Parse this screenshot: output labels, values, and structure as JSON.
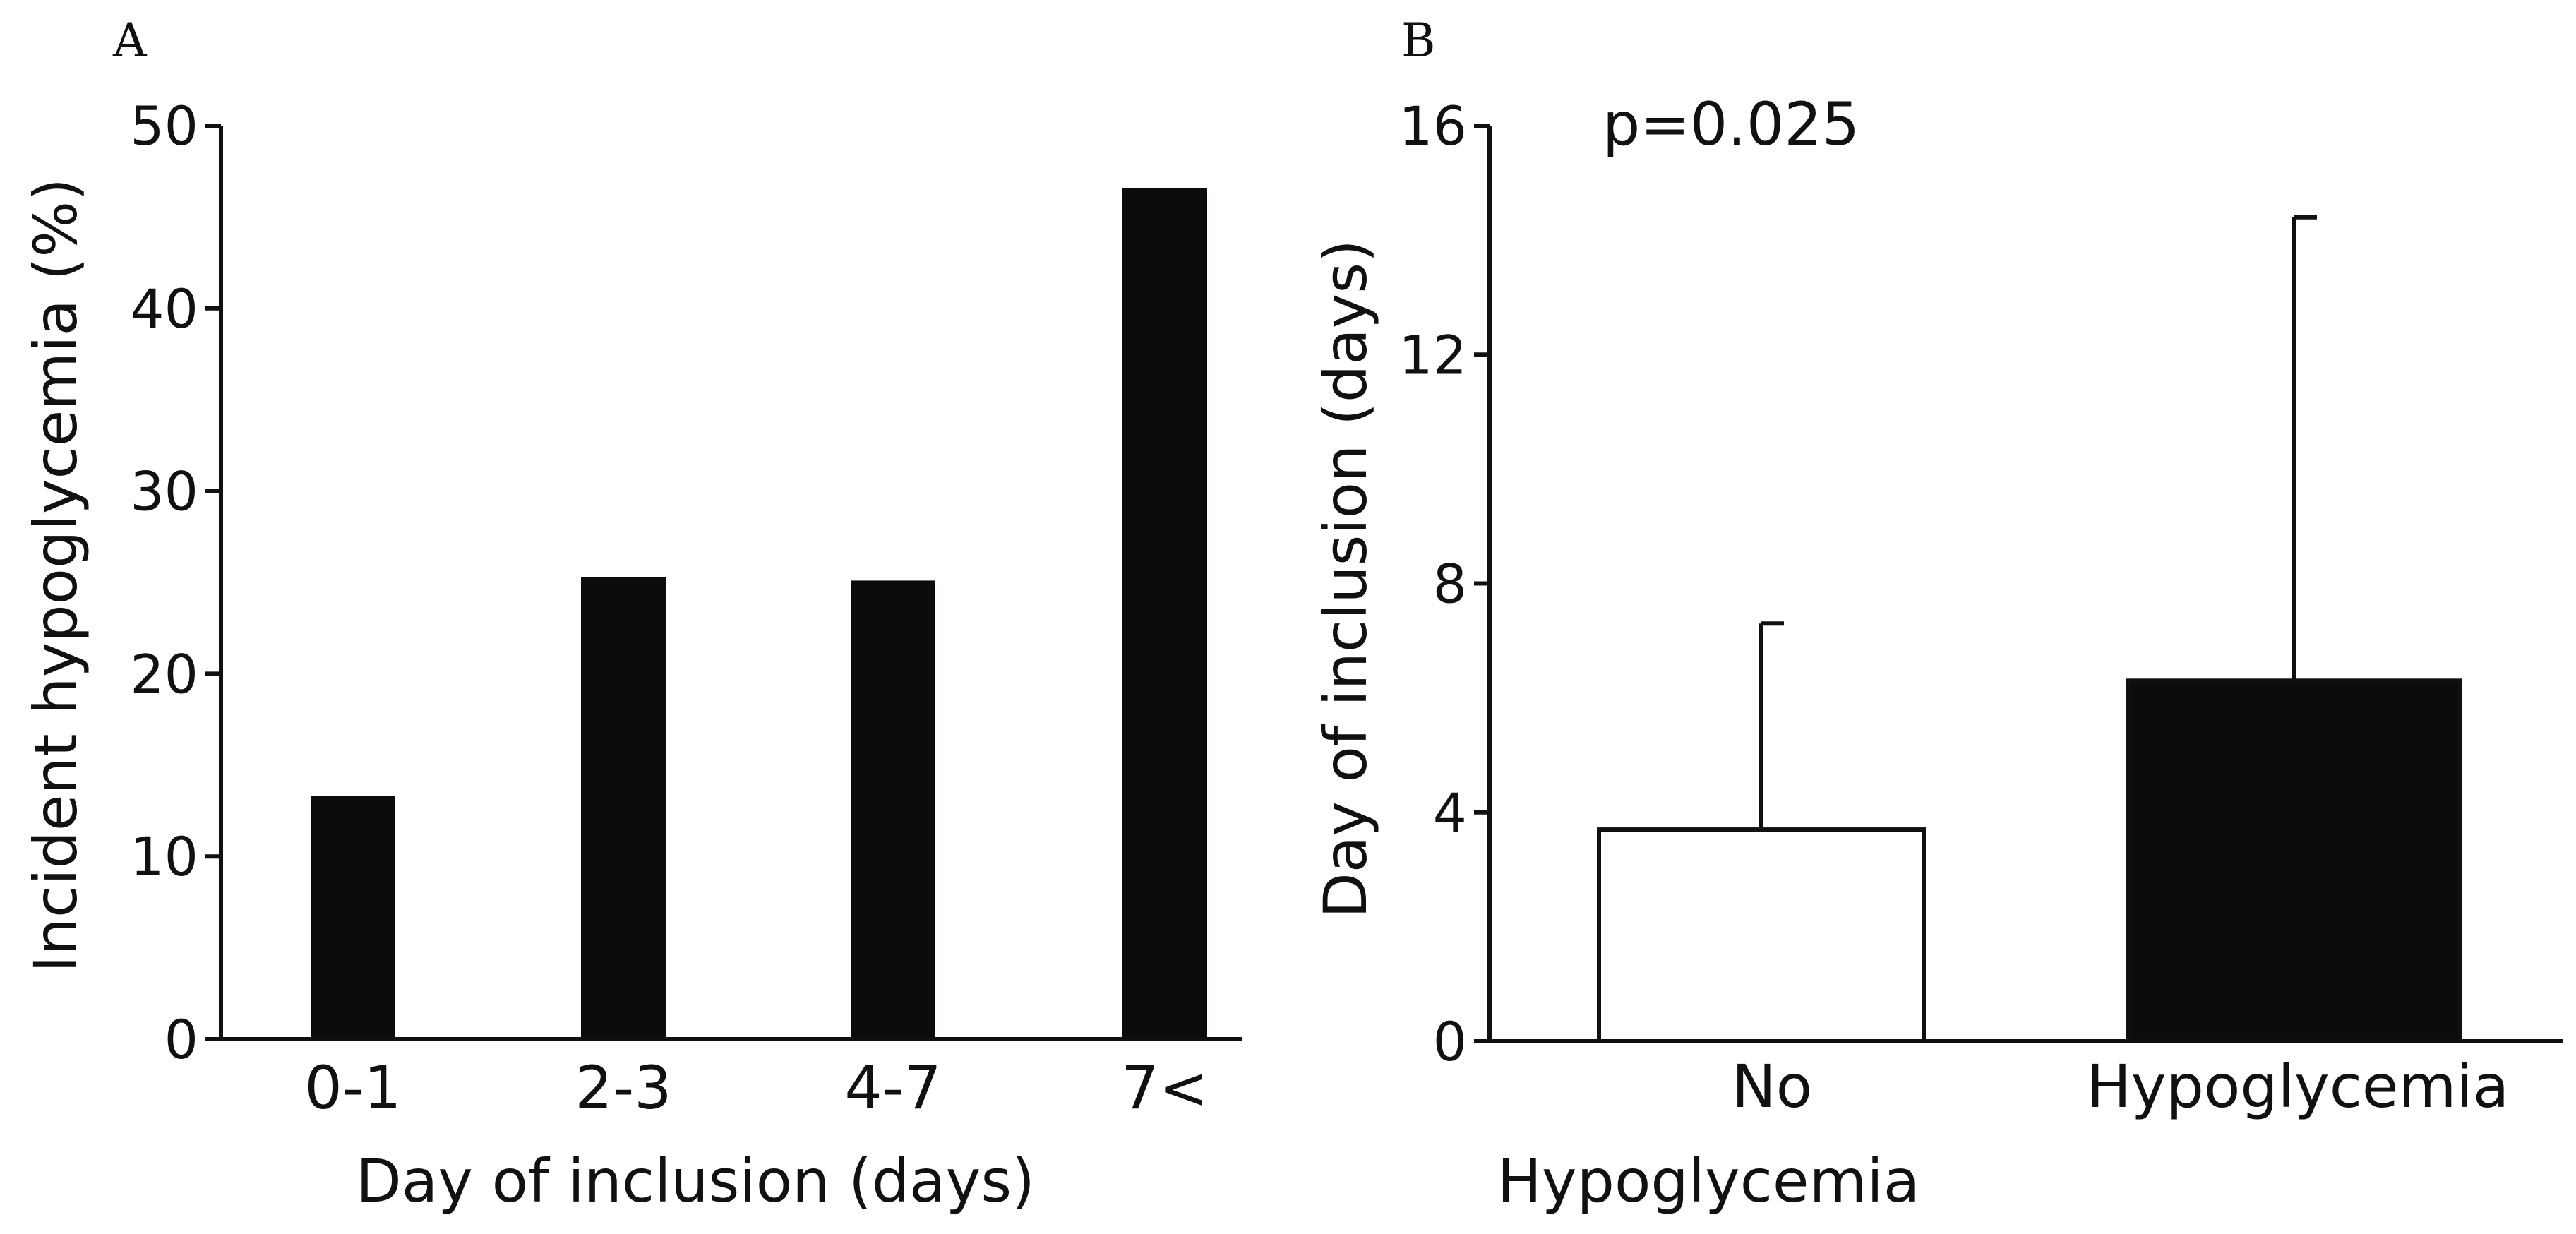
{
  "chart_data": [
    {
      "panel": "A",
      "type": "bar",
      "title": "",
      "categories": [
        "0-1",
        "2-3",
        "4-7",
        "7<"
      ],
      "values": [
        13.3,
        25.3,
        25.1,
        46.6
      ],
      "xlabel": "Day of inclusion (days)",
      "ylabel": "Incident hypoglycemia (%)",
      "ylim": [
        0,
        50
      ],
      "yticks": [
        "0",
        "10",
        "20",
        "30",
        "40",
        "50"
      ],
      "bar_color": "#0d0b0b"
    },
    {
      "panel": "B",
      "type": "bar",
      "title": "",
      "categories": [
        "No Hypoglycemia",
        "Hypoglycemia"
      ],
      "category_lines": [
        [
          "No",
          "Hypoglycemia"
        ],
        [
          "Hypoglycemia"
        ]
      ],
      "values": [
        3.7,
        6.3
      ],
      "error_upper": [
        7.3,
        14.4
      ],
      "xlabel": "",
      "ylabel": "Day of inclusion (days)",
      "ylim": [
        0,
        16
      ],
      "yticks": [
        "0",
        "4",
        "8",
        "12",
        "16"
      ],
      "annotation": "p=0.025",
      "bar_fills": [
        "#ffffff",
        "#0d0b0b"
      ]
    }
  ]
}
